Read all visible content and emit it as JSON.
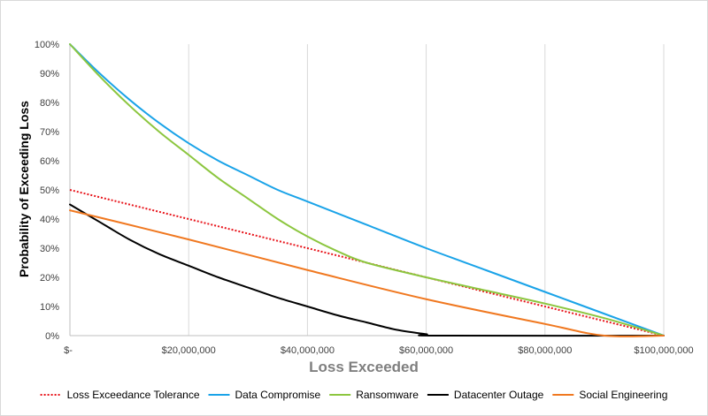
{
  "chart_data": {
    "type": "line",
    "title": "",
    "xlabel": "Loss Exceeded",
    "ylabel": "Probability of Exceeding Loss",
    "xlim": [
      0,
      100000000
    ],
    "ylim": [
      0,
      1
    ],
    "grid": "vertical",
    "legend_position": "bottom",
    "x_ticks": [
      0,
      20000000,
      40000000,
      60000000,
      80000000,
      100000000
    ],
    "x_tick_labels": [
      "$-",
      "$20,000,000",
      "$40,000,000",
      "$60,000,000",
      "$80,000,000",
      "$100,000,000"
    ],
    "y_ticks": [
      0,
      0.1,
      0.2,
      0.3,
      0.4,
      0.5,
      0.6,
      0.7,
      0.8,
      0.9,
      1.0
    ],
    "y_tick_labels": [
      "0%",
      "10%",
      "20%",
      "30%",
      "40%",
      "50%",
      "60%",
      "70%",
      "80%",
      "90%",
      "100%"
    ],
    "series": [
      {
        "name": "Loss Exceedance Tolerance",
        "color": "#e8141b",
        "dash": "dotted",
        "x": [
          0,
          100000000
        ],
        "y": [
          0.5,
          0.0
        ]
      },
      {
        "name": "Data Compromise",
        "color": "#1aa3e8",
        "dash": "solid",
        "x": [
          0,
          5000000,
          10000000,
          15000000,
          20000000,
          25000000,
          30000000,
          35000000,
          40000000,
          50000000,
          60000000,
          70000000,
          80000000,
          90000000,
          100000000
        ],
        "y": [
          1.0,
          0.9,
          0.81,
          0.73,
          0.66,
          0.6,
          0.55,
          0.5,
          0.46,
          0.38,
          0.3,
          0.225,
          0.15,
          0.075,
          0.0
        ]
      },
      {
        "name": "Ransomware",
        "color": "#8cc63f",
        "dash": "solid",
        "x": [
          0,
          5000000,
          10000000,
          15000000,
          20000000,
          25000000,
          30000000,
          35000000,
          40000000,
          45000000,
          50000000,
          60000000,
          70000000,
          80000000,
          90000000,
          100000000
        ],
        "y": [
          1.0,
          0.89,
          0.79,
          0.7,
          0.62,
          0.54,
          0.47,
          0.4,
          0.34,
          0.29,
          0.25,
          0.2,
          0.155,
          0.11,
          0.06,
          0.0
        ]
      },
      {
        "name": "Datacenter Outage",
        "color": "#000000",
        "dash": "solid",
        "x": [
          0,
          5000000,
          10000000,
          15000000,
          20000000,
          25000000,
          30000000,
          35000000,
          40000000,
          45000000,
          50000000,
          55000000,
          60000000,
          62000000,
          100000000
        ],
        "y": [
          0.45,
          0.39,
          0.33,
          0.28,
          0.24,
          0.2,
          0.165,
          0.13,
          0.1,
          0.07,
          0.045,
          0.02,
          0.005,
          0.0,
          0.0
        ]
      },
      {
        "name": "Social Engineering",
        "color": "#f07820",
        "dash": "solid",
        "x": [
          0,
          20000000,
          40000000,
          60000000,
          80000000,
          90000000,
          100000000
        ],
        "y": [
          0.43,
          0.33,
          0.225,
          0.125,
          0.04,
          0.0,
          0.0
        ]
      }
    ]
  }
}
